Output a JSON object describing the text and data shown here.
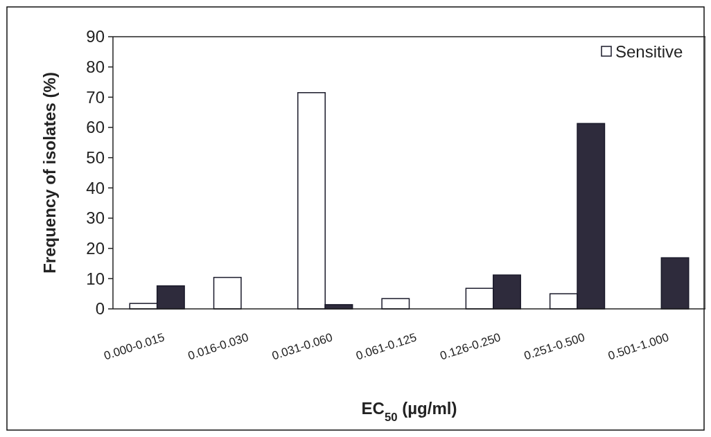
{
  "chart_data": {
    "type": "bar",
    "xlabel": "EC$_{50}$ (µg/ml)",
    "ylabel": "Frequency of isolates (%)",
    "categories": [
      "0.000-0.015",
      "0.016-0.030",
      "0.031-0.060",
      "0.061-0.125",
      "0.126-0.250",
      "0.251-0.500",
      "0.501-1.000"
    ],
    "series": [
      {
        "name": "Sensitive",
        "color": "#ffffff",
        "values": [
          1.8,
          10.4,
          71.5,
          3.4,
          6.8,
          5.0,
          0
        ]
      },
      {
        "color": "#2e2b3c",
        "values": [
          7.6,
          0,
          1.4,
          0,
          11.2,
          61.3,
          16.9
        ]
      }
    ],
    "ylim": [
      0,
      90
    ],
    "yticks": [
      0,
      10,
      20,
      30,
      40,
      50,
      60,
      70,
      80,
      90
    ],
    "legend": "top right"
  }
}
